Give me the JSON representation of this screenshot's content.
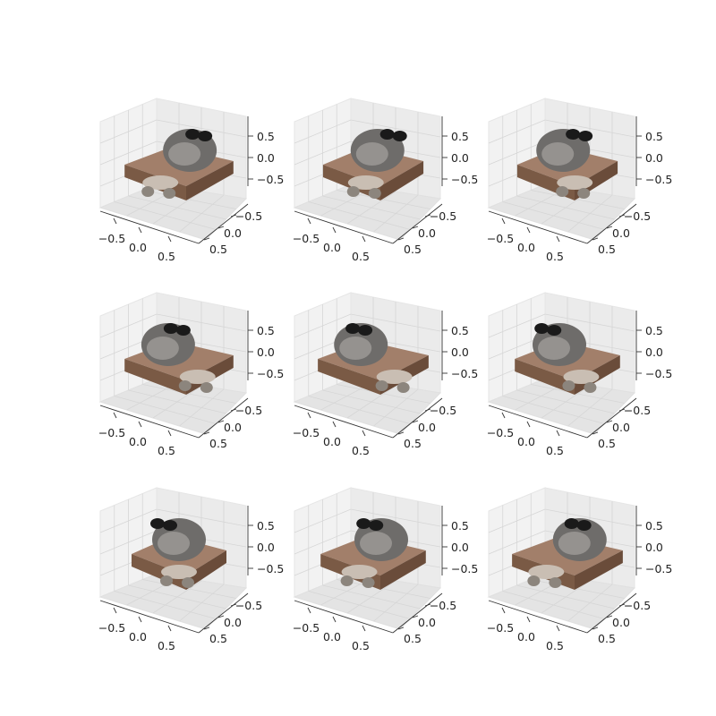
{
  "chart_data": {
    "type": "scatter",
    "title": "",
    "grid": true,
    "layout_grid": "3x3",
    "tick_labels": {
      "x": [
        "−0.5",
        "0.0",
        "0.5"
      ],
      "y": [
        "−0.5",
        "0.0",
        "0.5"
      ],
      "z": [
        "−0.5",
        "0.0",
        "0.5"
      ]
    },
    "axis_ranges": {
      "x": [
        -0.8,
        0.8
      ],
      "y": [
        -0.8,
        0.8
      ],
      "z": [
        -0.8,
        0.8
      ]
    },
    "colors": {
      "pane": "#f2f2f2",
      "grid": "#d6d6d6",
      "cushion": "#7a5a45",
      "cushion_edge": "#a27f6a",
      "animal": "#6e6c6a",
      "animal_light": "#a5a29f",
      "ears": "#1a1a1a",
      "paws": "#c9beb3"
    },
    "subplots": [
      {
        "azimuth": 30,
        "elevation": 30
      },
      {
        "azimuth": 70,
        "elevation": 30
      },
      {
        "azimuth": 110,
        "elevation": 30
      },
      {
        "azimuth": 150,
        "elevation": 30
      },
      {
        "azimuth": 190,
        "elevation": 30
      },
      {
        "azimuth": 230,
        "elevation": 30
      },
      {
        "azimuth": 270,
        "elevation": 30
      },
      {
        "azimuth": 310,
        "elevation": 30
      },
      {
        "azimuth": 350,
        "elevation": 30
      }
    ]
  }
}
